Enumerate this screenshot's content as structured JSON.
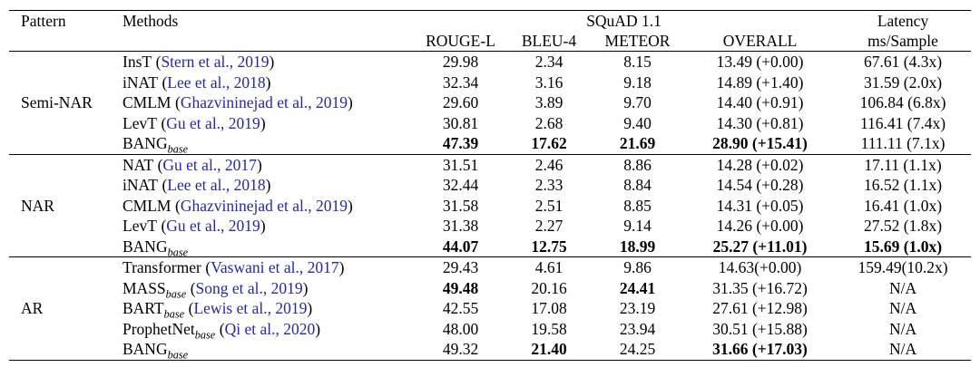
{
  "punct": {
    "open": "(",
    "close": ")"
  },
  "colors": {
    "citation_link": "#2626b0",
    "text": "#000000",
    "rule": "#000000"
  },
  "header": {
    "pattern": "Pattern",
    "methods": "Methods",
    "group": "SQuAD 1.1",
    "col_rouge": "ROUGE-L",
    "col_bleu": "BLEU-4",
    "col_meteor": "METEOR",
    "col_overall": "OVERALL",
    "latency_title": "Latency",
    "latency_unit": "ms/Sample"
  },
  "sections": [
    {
      "pattern": "Semi-NAR",
      "rows": [
        {
          "name": "InsT",
          "cite": "Stern et al., 2019",
          "rouge": "29.98",
          "bleu": "2.34",
          "meteor": "8.15",
          "overall": "13.49 (+0.00)",
          "latency": "67.61 (4.3x)"
        },
        {
          "name": "iNAT",
          "cite": "Lee et al., 2018",
          "rouge": "32.34",
          "bleu": "3.16",
          "meteor": "9.18",
          "overall": "14.89 (+1.40)",
          "latency": "31.59 (2.0x)"
        },
        {
          "name": "CMLM",
          "cite": "Ghazvininejad et al., 2019",
          "rouge": "29.60",
          "bleu": "3.89",
          "meteor": "9.70",
          "overall": "14.40 (+0.91)",
          "latency": "106.84 (6.8x)"
        },
        {
          "name": "LevT",
          "cite": "Gu et al., 2019",
          "rouge": "30.81",
          "bleu": "2.68",
          "meteor": "9.40",
          "overall": "14.30 (+0.81)",
          "latency": "116.41 (7.4x)"
        },
        {
          "name": "BANG",
          "sub": "base",
          "rouge": "47.39",
          "bleu": "17.62",
          "meteor": "21.69",
          "overall": "28.90 (+15.41)",
          "latency": "111.11 (7.1x)"
        }
      ]
    },
    {
      "pattern": "NAR",
      "rows": [
        {
          "name": "NAT",
          "cite": "Gu et al., 2017",
          "rouge": "31.51",
          "bleu": "2.46",
          "meteor": "8.86",
          "overall": "14.28 (+0.02)",
          "latency": "17.11 (1.1x)"
        },
        {
          "name": "iNAT",
          "cite": "Lee et al., 2018",
          "rouge": "32.44",
          "bleu": "2.33",
          "meteor": "8.84",
          "overall": "14.54 (+0.28)",
          "latency": "16.52 (1.1x)"
        },
        {
          "name": "CMLM",
          "cite": "Ghazvininejad et al., 2019",
          "rouge": "31.58",
          "bleu": "2.51",
          "meteor": "8.85",
          "overall": "14.31 (+0.05)",
          "latency": "16.41 (1.0x)"
        },
        {
          "name": "LevT",
          "cite": "Gu et al., 2019",
          "rouge": "31.38",
          "bleu": "2.27",
          "meteor": "9.14",
          "overall": "14.26 (+0.00)",
          "latency": "27.52 (1.8x)"
        },
        {
          "name": "BANG",
          "sub": "base",
          "rouge": "44.07",
          "bleu": "12.75",
          "meteor": "18.99",
          "overall": "25.27 (+11.01)",
          "latency": "15.69 (1.0x)"
        }
      ]
    },
    {
      "pattern": "AR",
      "rows": [
        {
          "name": "Transformer",
          "cite": "Vaswani et al., 2017",
          "rouge": "29.43",
          "bleu": "4.61",
          "meteor": "9.86",
          "overall": "14.63(+0.00)",
          "latency": "159.49(10.2x)"
        },
        {
          "name": "MASS",
          "sub": "base",
          "cite": "Song et al., 2019",
          "rouge": "49.48",
          "bleu": "20.16",
          "meteor": "24.41",
          "overall": "31.35 (+16.72)",
          "latency": "N/A"
        },
        {
          "name": "BART",
          "sub": "base",
          "cite": "Lewis et al., 2019",
          "rouge": "42.55",
          "bleu": "17.08",
          "meteor": "23.19",
          "overall": "27.61 (+12.98)",
          "latency": "N/A"
        },
        {
          "name": "ProphetNet",
          "sub": "base",
          "cite": "Qi et al., 2020",
          "rouge": "48.00",
          "bleu": "19.58",
          "meteor": "23.94",
          "overall": "30.51 (+15.88)",
          "latency": "N/A"
        },
        {
          "name": "BANG",
          "sub": "base",
          "rouge": "49.32",
          "bleu": "21.40",
          "meteor": "24.25",
          "overall": "31.66 (+17.03)",
          "latency": "N/A"
        }
      ]
    }
  ]
}
